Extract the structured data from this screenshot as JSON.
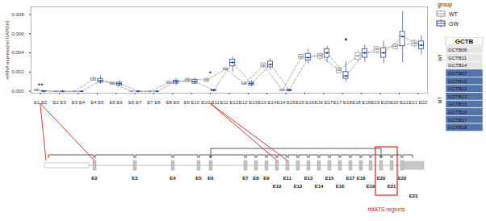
{
  "chart_data": {
    "type": "box",
    "y_label": "mRNA express(rel GAPDH)",
    "categories": [
      "E1 E2",
      "E2 E3",
      "E3 E4",
      "E4 E5",
      "E5 E6",
      "E6 E7",
      "E7 E8",
      "E8 E9",
      "E9 E10",
      "E10 E11",
      "E11 E12",
      "E12 E13",
      "E13 E14",
      "E14 E15",
      "E15 E16",
      "E16 E17",
      "E17 E18",
      "E18 E19",
      "E19 E20",
      "E20 E21",
      "E21 E22"
    ],
    "series": [
      {
        "name": "WT",
        "color": "#9a9a9a",
        "min": [
          3e-05,
          0,
          0,
          0.001,
          0.0006,
          0,
          0,
          0.0007,
          0.0009,
          0.0009,
          0.0021,
          0.0006,
          0.0024,
          3e-05,
          0.0033,
          0.0032,
          0.0018,
          0.0031,
          0.004,
          0.0043,
          0.0045
        ],
        "q1": [
          5e-05,
          0,
          0,
          0.0011,
          0.0007,
          0,
          0,
          0.0008,
          0.001,
          0.001,
          0.0022,
          0.0007,
          0.0025,
          5e-05,
          0.0034,
          0.0034,
          0.0019,
          0.0033,
          0.0041,
          0.0044,
          0.0047
        ],
        "median": [
          0.0001,
          0,
          0,
          0.0013,
          0.0008,
          0,
          0,
          0.0009,
          0.0012,
          0.0012,
          0.0023,
          0.0008,
          0.0027,
          0.0001,
          0.0036,
          0.0037,
          0.0022,
          0.0037,
          0.0044,
          0.0047,
          0.005
        ],
        "q3": [
          0.00015,
          0,
          0,
          0.0014,
          0.0009,
          0,
          0,
          0.001,
          0.0013,
          0.0013,
          0.0024,
          0.0009,
          0.0029,
          0.00015,
          0.0038,
          0.0039,
          0.0024,
          0.004,
          0.0046,
          0.0049,
          0.0052
        ],
        "max": [
          0.0002,
          0,
          0,
          0.0015,
          0.001,
          0,
          0,
          0.0011,
          0.0014,
          0.0014,
          0.0025,
          0.001,
          0.003,
          0.0002,
          0.0039,
          0.004,
          0.0026,
          0.0042,
          0.0047,
          0.005,
          0.0054
        ],
        "outliers": []
      },
      {
        "name": "GW",
        "color": "#2b4c9b",
        "min": [
          0,
          0,
          0,
          0.0007,
          0.0005,
          0,
          0,
          0.0006,
          0.0007,
          2e-05,
          0.002,
          0.0005,
          0.0022,
          2e-05,
          0.0028,
          0.003,
          0.001,
          0.003,
          0.0029,
          0.003,
          0.0038
        ],
        "q1": [
          0,
          0,
          0,
          0.0009,
          0.0006,
          0,
          0,
          0.0008,
          0.0008,
          5e-05,
          0.0026,
          0.0006,
          0.0025,
          5e-05,
          0.0032,
          0.0035,
          0.0013,
          0.0035,
          0.0035,
          0.0047,
          0.0044
        ],
        "median": [
          0,
          0,
          0,
          0.0011,
          0.0008,
          0,
          0,
          0.001,
          0.001,
          0.0001,
          0.003,
          0.0008,
          0.0028,
          0.0001,
          0.0035,
          0.004,
          0.0016,
          0.004,
          0.004,
          0.0057,
          0.0048
        ],
        "q3": [
          2e-05,
          0,
          0,
          0.0013,
          0.0009,
          0,
          0,
          0.0011,
          0.0012,
          0.00015,
          0.0033,
          0.0009,
          0.0031,
          0.00015,
          0.0039,
          0.0044,
          0.002,
          0.0044,
          0.0045,
          0.0062,
          0.0052
        ],
        "max": [
          5e-05,
          0,
          0,
          0.0016,
          0.0011,
          0,
          0,
          0.0013,
          0.0014,
          0.0002,
          0.0036,
          0.0011,
          0.0034,
          0.0002,
          0.0044,
          0.0047,
          0.0031,
          0.0048,
          0.0052,
          0.0083,
          0.0058
        ],
        "outliers": [
          {
            "category": "E17 E18",
            "value": 0.0054
          }
        ]
      }
    ],
    "ylim": [
      -0.0002,
      0.0088
    ],
    "yticks": [
      {
        "value": 0,
        "label": "0.000"
      },
      {
        "value": 0.002,
        "label": "0.002"
      },
      {
        "value": 0.004,
        "label": "0.004"
      },
      {
        "value": 0.006,
        "label": "0.006"
      },
      {
        "value": 0.008,
        "label": "0.008"
      }
    ],
    "grid": false,
    "legend": "right",
    "legend_title": "group",
    "annotations": [
      {
        "category": "E1 E2",
        "text": "**"
      },
      {
        "category": "E10 E11",
        "text": "*"
      }
    ]
  },
  "legend_table": {
    "title": "GCTB",
    "groups": [
      {
        "name": "WT",
        "color": "#e6e6e6",
        "samples": [
          "GCTB09",
          "GCTB11",
          "GCTB14"
        ]
      },
      {
        "name": "MT",
        "color": "#5573ab",
        "samples": [
          "GCTB07",
          "GCTB10",
          "GCTB12",
          "GCTB13",
          "GCTB15",
          "GCTB16",
          "GCTB17",
          "GCTB18"
        ]
      }
    ]
  },
  "gene_diagram": {
    "exons": [
      "E2",
      "E3",
      "E4",
      "E5",
      "E6",
      "E7",
      "E8",
      "E9",
      "E10",
      "E11",
      "E12",
      "E13",
      "E14",
      "E15",
      "E16",
      "E17",
      "E18",
      "E19",
      "E20",
      "E21",
      "E22",
      "E23"
    ],
    "highlight": {
      "label": "rMATS regions",
      "exons": [
        "E20",
        "E21"
      ]
    }
  }
}
